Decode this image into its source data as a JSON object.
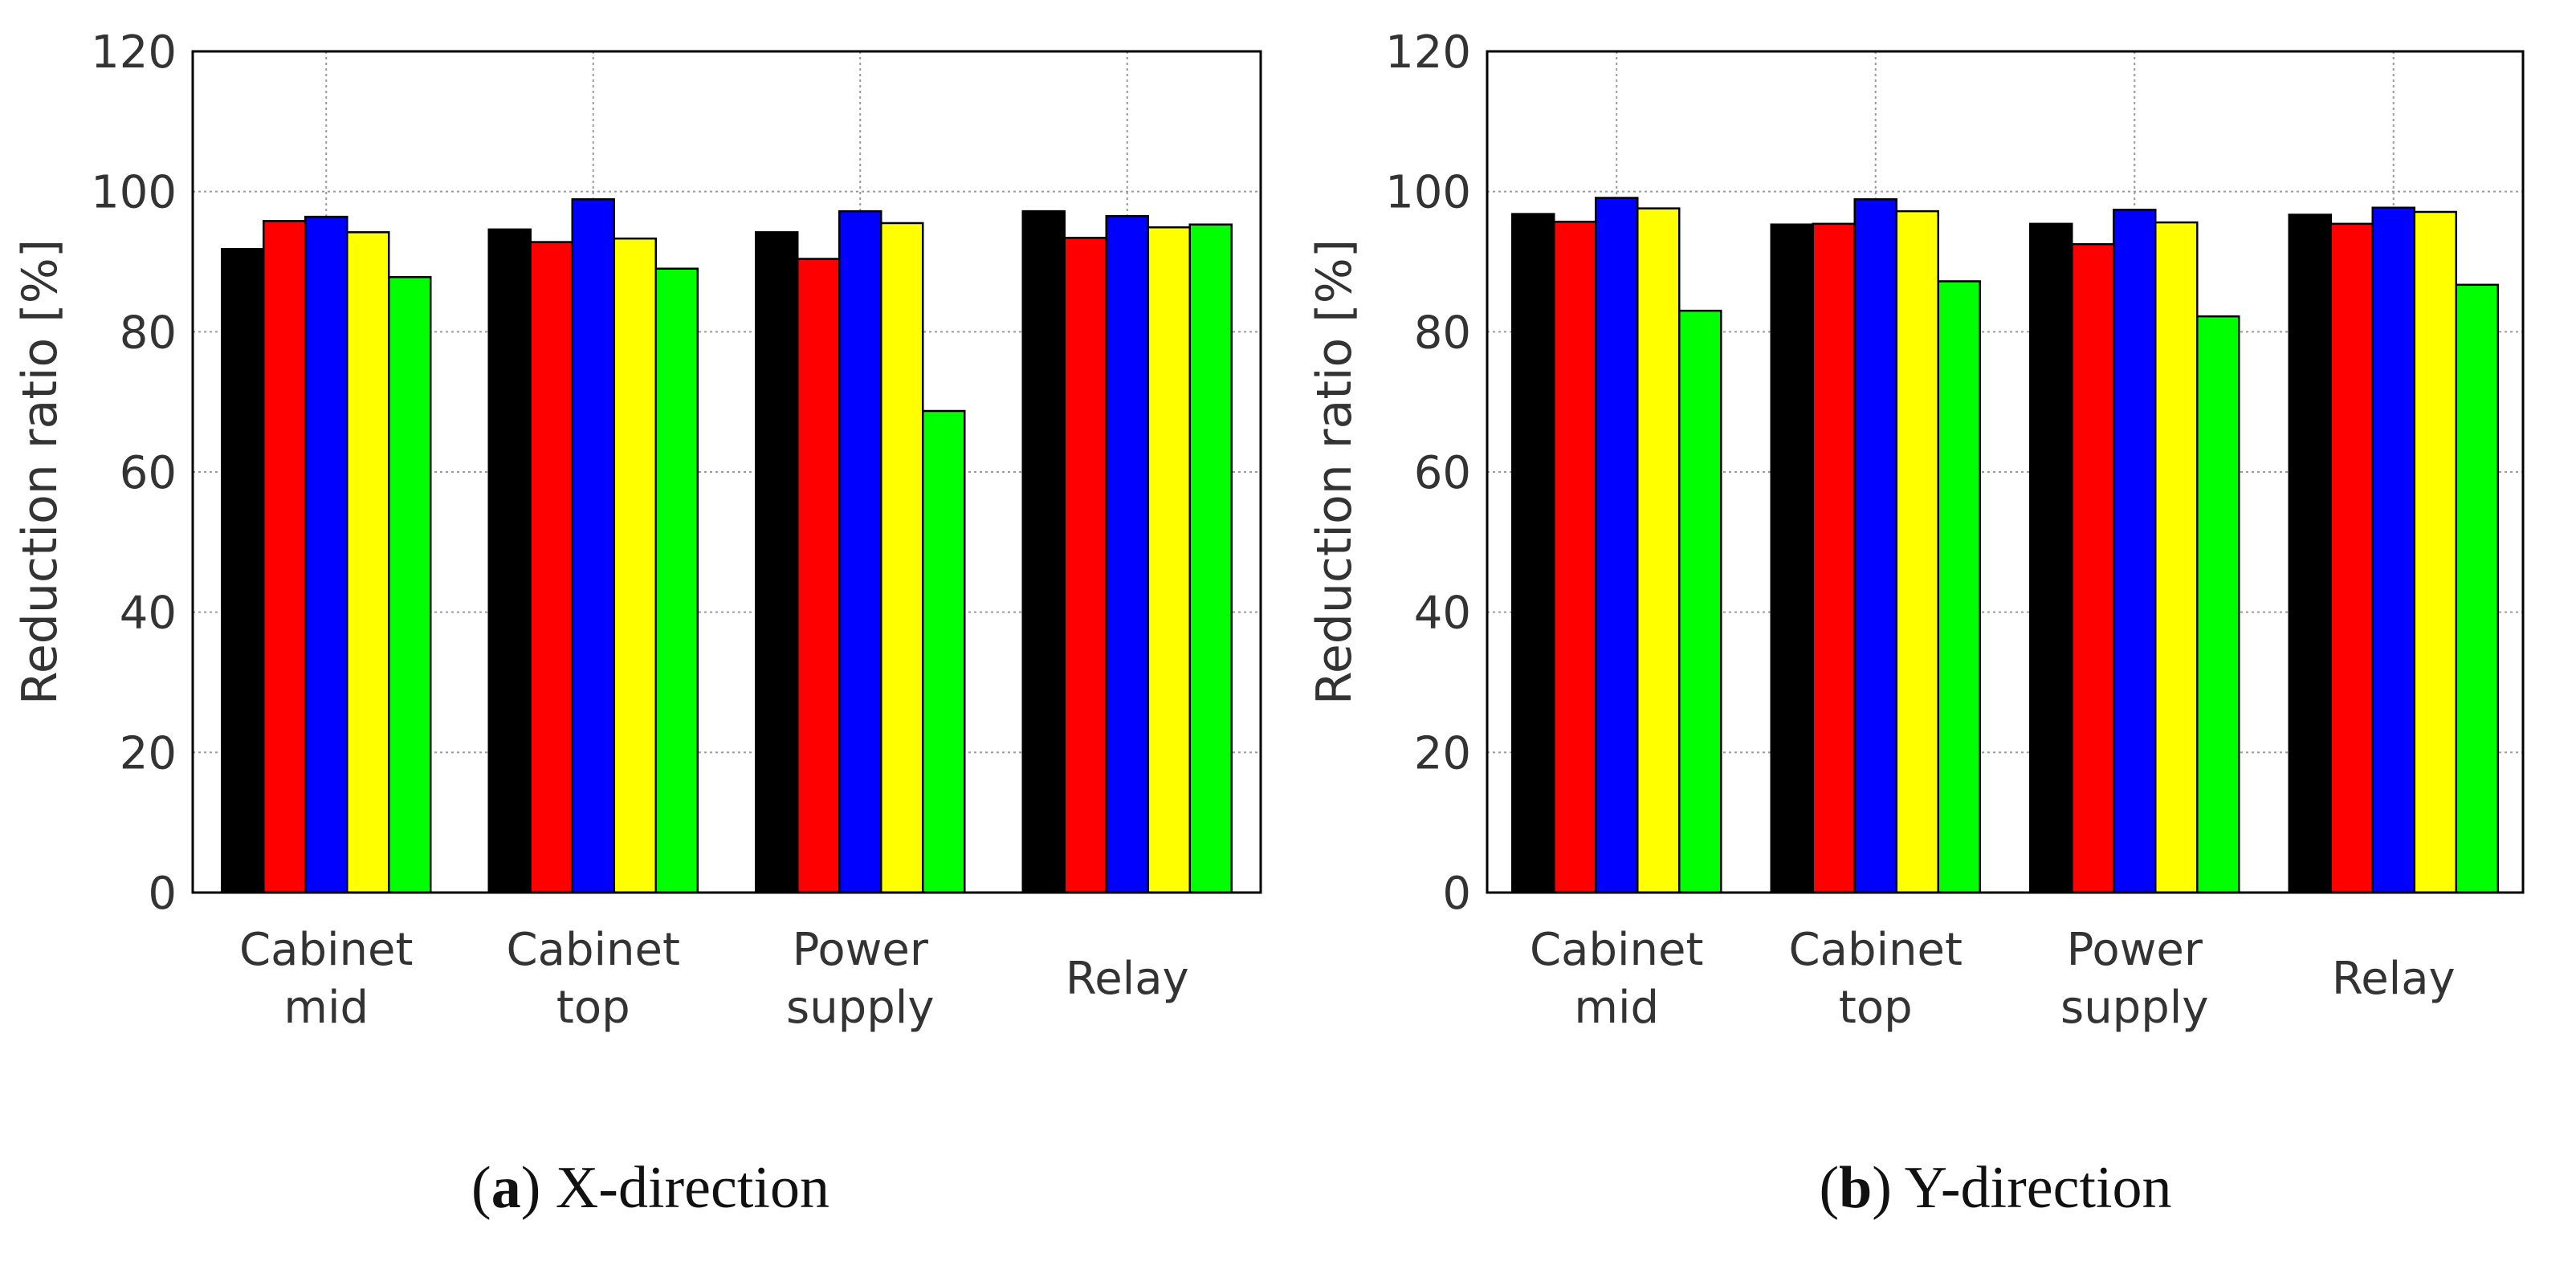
{
  "chart_data": [
    {
      "type": "bar",
      "caption_letter": "a",
      "caption_text": "X-direction",
      "ylabel": "Reduction ratio [%]",
      "xlabel": "",
      "ylim": [
        0,
        120
      ],
      "yticks": [
        0,
        20,
        40,
        60,
        80,
        100,
        120
      ],
      "grid": true,
      "categories": [
        [
          "Cabinet",
          "mid"
        ],
        [
          "Cabinet",
          "top"
        ],
        [
          "Power",
          "supply"
        ],
        [
          "Relay"
        ]
      ],
      "series": [
        {
          "color": "#000000",
          "values": [
            91.8,
            94.6,
            94.2,
            97.2
          ]
        },
        {
          "color": "#ff0000",
          "values": [
            95.8,
            92.8,
            90.4,
            93.4
          ]
        },
        {
          "color": "#0000ff",
          "values": [
            96.4,
            98.9,
            97.2,
            96.5
          ]
        },
        {
          "color": "#ffff00",
          "values": [
            94.2,
            93.3,
            95.5,
            94.9
          ]
        },
        {
          "color": "#00ff00",
          "values": [
            87.8,
            89.0,
            68.7,
            95.3
          ]
        }
      ]
    },
    {
      "type": "bar",
      "caption_letter": "b",
      "caption_text": "Y-direction",
      "ylabel": "Reduction ratio [%]",
      "xlabel": "",
      "ylim": [
        0,
        120
      ],
      "yticks": [
        0,
        20,
        40,
        60,
        80,
        100,
        120
      ],
      "grid": true,
      "categories": [
        [
          "Cabinet",
          "mid"
        ],
        [
          "Cabinet",
          "top"
        ],
        [
          "Power",
          "supply"
        ],
        [
          "Relay"
        ]
      ],
      "series": [
        {
          "color": "#000000",
          "values": [
            96.8,
            95.3,
            95.4,
            96.7
          ]
        },
        {
          "color": "#ff0000",
          "values": [
            95.7,
            95.4,
            92.5,
            95.4
          ]
        },
        {
          "color": "#0000ff",
          "values": [
            99.1,
            98.9,
            97.4,
            97.7
          ]
        },
        {
          "color": "#ffff00",
          "values": [
            97.6,
            97.2,
            95.6,
            97.1
          ]
        },
        {
          "color": "#00ff00",
          "values": [
            83.0,
            87.2,
            82.2,
            86.7
          ]
        }
      ]
    }
  ]
}
